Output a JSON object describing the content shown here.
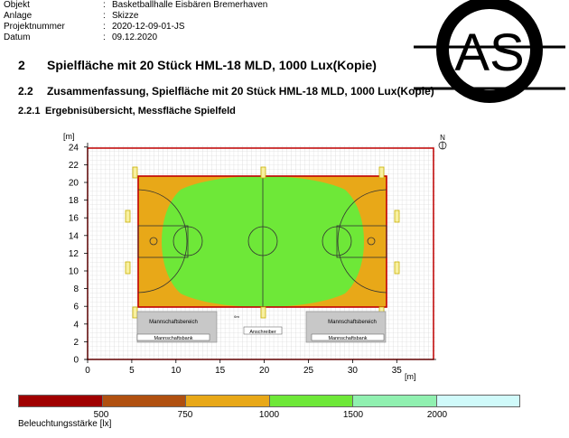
{
  "header": {
    "rows": [
      {
        "key": "Objekt",
        "sep": ":",
        "value": "Basketballhalle Eisbären Bremerhaven"
      },
      {
        "key": "Anlage",
        "sep": ":",
        "value": "Skizze"
      },
      {
        "key": "Projektnummer",
        "sep": ":",
        "value": "2020-12-09-01-JS"
      },
      {
        "key": "Datum",
        "sep": ":",
        "value": "09.12.2020"
      }
    ]
  },
  "logo": {
    "text": "AS"
  },
  "section": {
    "number": "2",
    "title": "Spielfläche mit 20 Stück HML-18 MLD, 1000 Lux(Kopie)"
  },
  "subsection": {
    "number": "2.2",
    "title": "Zusammenfassung, Spielfläche mit 20 Stück HML-18 MLD, 1000 Lux(Kopie)"
  },
  "subsubsection": {
    "number": "2.2.1",
    "title": "Ergebnisübersicht, Messfläche Spielfeld"
  },
  "plot": {
    "x_unit": "[m]",
    "y_unit": "[m]",
    "x_ticks": [
      "0",
      "5",
      "10",
      "15",
      "20",
      "25",
      "30",
      "35"
    ],
    "y_ticks": [
      "0",
      "2",
      "4",
      "6",
      "8",
      "10",
      "12",
      "14",
      "16",
      "18",
      "20",
      "22",
      "24"
    ],
    "north": "N",
    "labels": {
      "bench_area_left": "Mannschaftsbereich",
      "bench_left": "Mannschaftsbank",
      "bench_area_right": "Mannschaftsbereich",
      "bench_right": "Mannschaftsbank",
      "scorer": "Anschreiber",
      "dim_6m": "6m"
    }
  },
  "legend": {
    "colors": [
      "#a00000",
      "#b05010",
      "#e8a818",
      "#6ee838",
      "#90f0b0",
      "#d0fafa"
    ],
    "ticks": [
      "500",
      "750",
      "1000",
      "1500",
      "2000"
    ],
    "unit_label": "Beleuchtungsstärke [lx]"
  }
}
